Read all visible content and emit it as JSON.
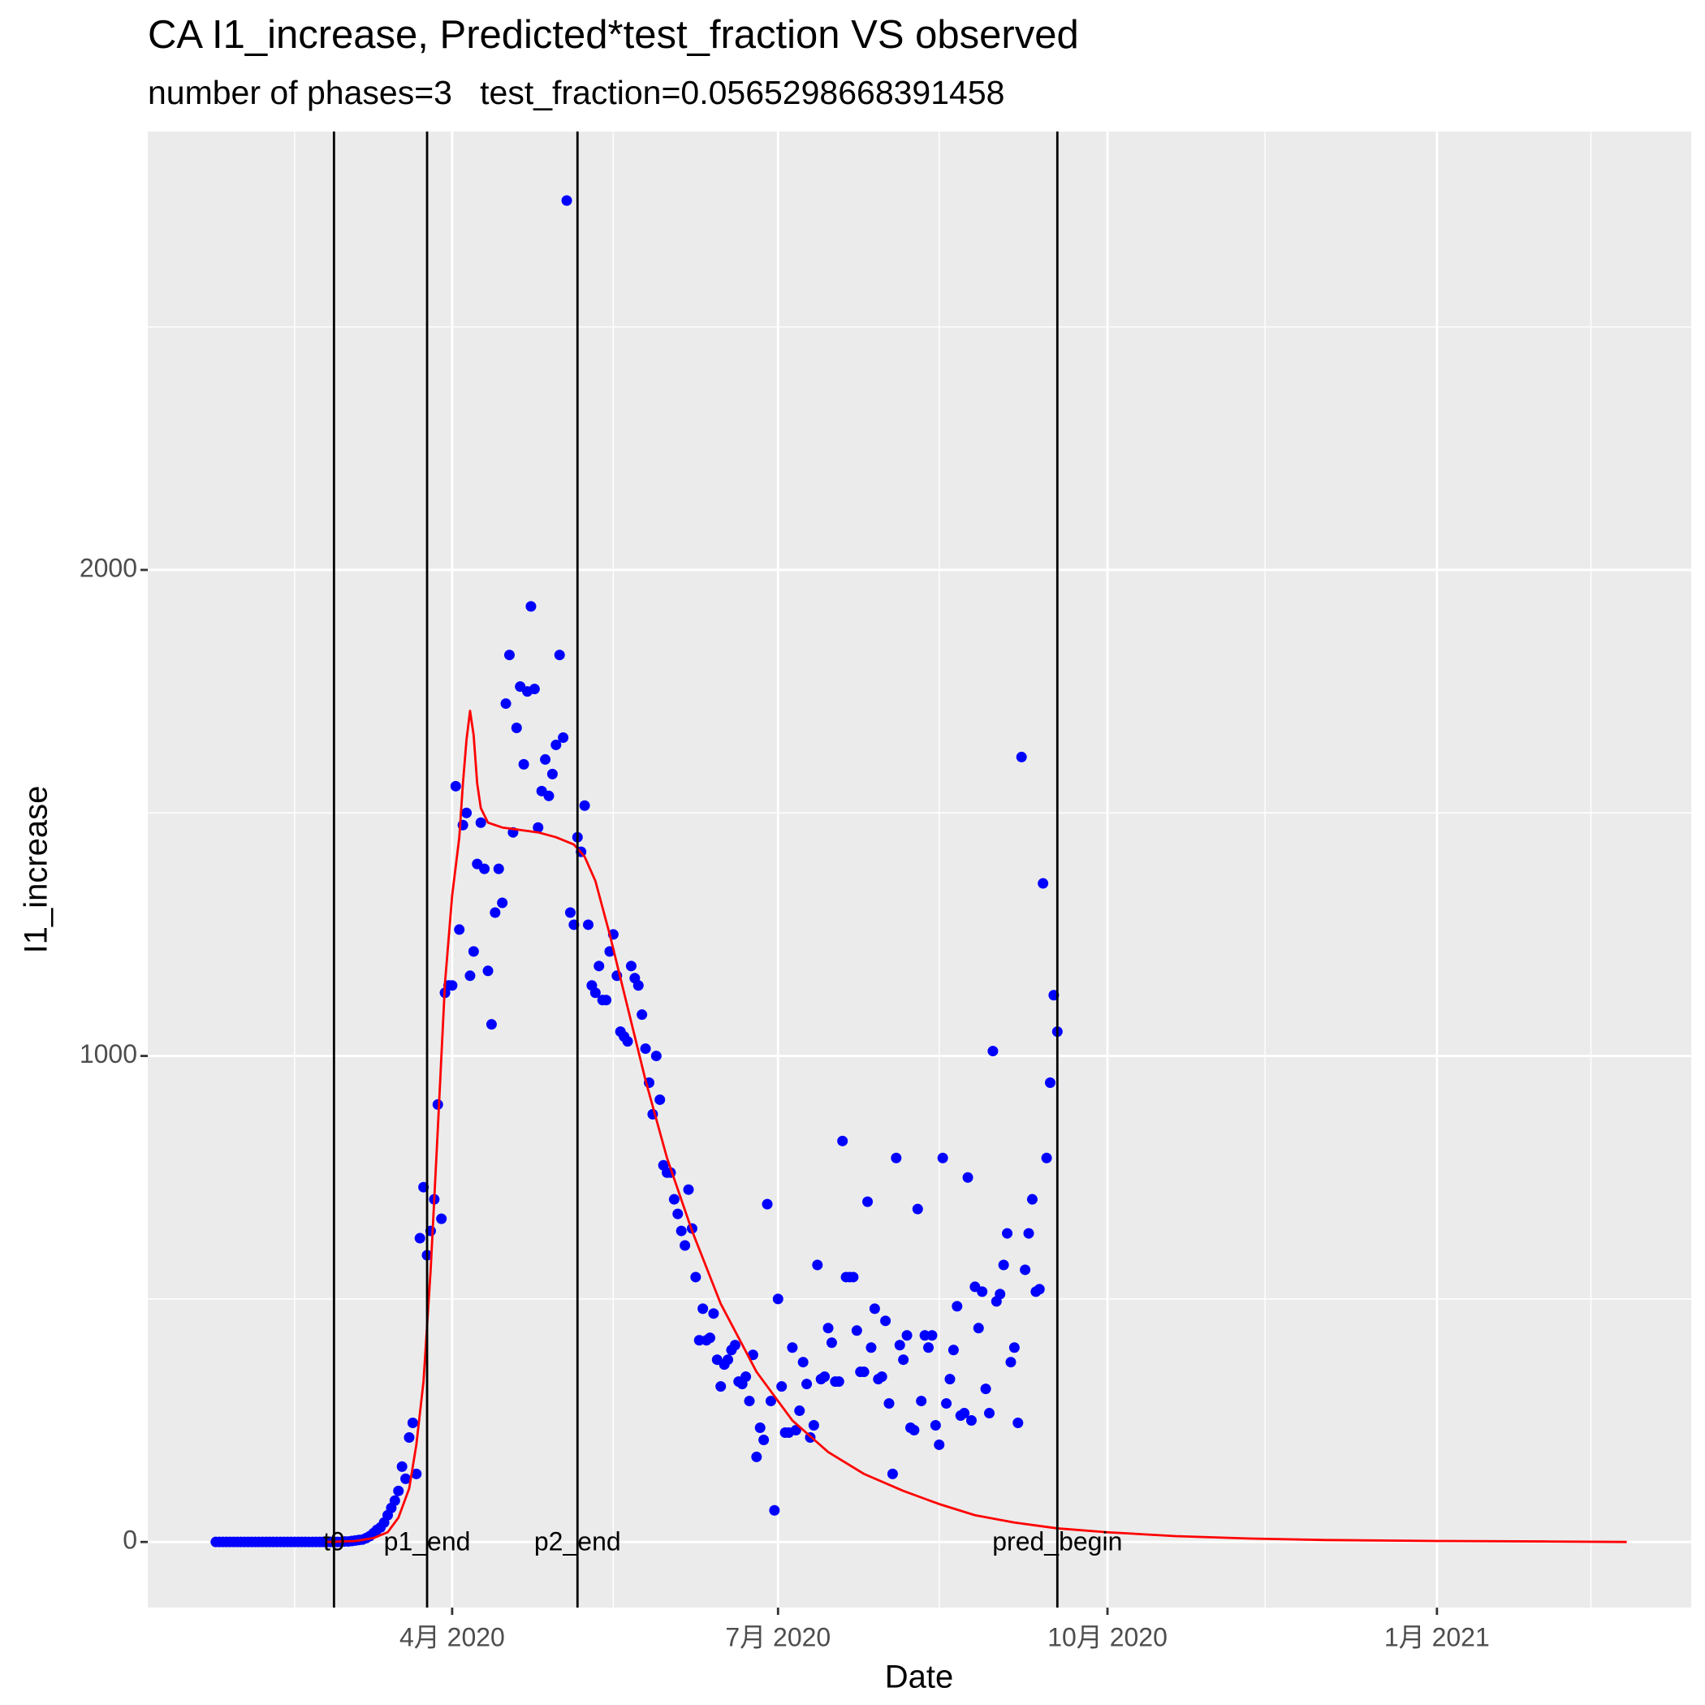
{
  "chart_data": {
    "type": "scatter",
    "title": "CA I1_increase, Predicted*test_fraction VS observed",
    "subtitle": "number of phases=3   test_fraction=0.0565298668391458",
    "xlabel": "Date",
    "ylabel": "I1_increase",
    "xlim": [
      "2020-01-07",
      "2021-03-13"
    ],
    "ylim": [
      -135,
      2902
    ],
    "xticks": [
      {
        "value": "2020-04-01",
        "label": "4月 2020"
      },
      {
        "value": "2020-07-01",
        "label": "7月 2020"
      },
      {
        "value": "2020-10-01",
        "label": "10月 2020"
      },
      {
        "value": "2021-01-01",
        "label": "1月 2021"
      }
    ],
    "yticks": [
      0,
      1000,
      2000
    ],
    "minor_xgrid": [
      "2020-02-17",
      "2020-05-16",
      "2020-08-15",
      "2020-11-14",
      "2021-02-13"
    ],
    "minor_ygrid": [
      500,
      1500,
      2500
    ],
    "grid": true,
    "panel_color": "#ebebeb",
    "vlines": [
      {
        "x": "2020-02-28",
        "label": "t0"
      },
      {
        "x": "2020-03-25",
        "label": "p1_end"
      },
      {
        "x": "2020-05-06",
        "label": "p2_end"
      },
      {
        "x": "2020-09-17",
        "label": "pred_begin"
      }
    ],
    "series": [
      {
        "type": "scatter",
        "color": "#0000ff",
        "x": [
          "2020-01-26",
          "2020-01-27",
          "2020-01-28",
          "2020-01-29",
          "2020-01-30",
          "2020-01-31",
          "2020-02-01",
          "2020-02-02",
          "2020-02-03",
          "2020-02-04",
          "2020-02-05",
          "2020-02-06",
          "2020-02-07",
          "2020-02-08",
          "2020-02-09",
          "2020-02-10",
          "2020-02-11",
          "2020-02-12",
          "2020-02-13",
          "2020-02-14",
          "2020-02-15",
          "2020-02-16",
          "2020-02-17",
          "2020-02-18",
          "2020-02-19",
          "2020-02-20",
          "2020-02-21",
          "2020-02-22",
          "2020-02-23",
          "2020-02-24",
          "2020-02-25",
          "2020-02-26",
          "2020-02-27",
          "2020-02-28",
          "2020-02-29",
          "2020-03-01",
          "2020-03-02",
          "2020-03-03",
          "2020-03-04",
          "2020-03-05",
          "2020-03-06",
          "2020-03-07",
          "2020-03-08",
          "2020-03-09",
          "2020-03-10",
          "2020-03-11",
          "2020-03-12",
          "2020-03-13",
          "2020-03-14",
          "2020-03-15",
          "2020-03-16",
          "2020-03-17",
          "2020-03-18",
          "2020-03-19",
          "2020-03-20",
          "2020-03-21",
          "2020-03-22",
          "2020-03-23",
          "2020-03-24",
          "2020-03-25",
          "2020-03-26",
          "2020-03-27",
          "2020-03-28",
          "2020-03-29",
          "2020-03-30",
          "2020-03-31",
          "2020-04-01",
          "2020-04-02",
          "2020-04-03",
          "2020-04-04",
          "2020-04-05",
          "2020-04-06",
          "2020-04-07",
          "2020-04-08",
          "2020-04-09",
          "2020-04-10",
          "2020-04-11",
          "2020-04-12",
          "2020-04-13",
          "2020-04-14",
          "2020-04-15",
          "2020-04-16",
          "2020-04-17",
          "2020-04-18",
          "2020-04-19",
          "2020-04-20",
          "2020-04-21",
          "2020-04-22",
          "2020-04-23",
          "2020-04-24",
          "2020-04-25",
          "2020-04-26",
          "2020-04-27",
          "2020-04-28",
          "2020-04-29",
          "2020-04-30",
          "2020-05-01",
          "2020-05-02",
          "2020-05-03",
          "2020-05-04",
          "2020-05-05",
          "2020-05-06",
          "2020-05-07",
          "2020-05-08",
          "2020-05-09",
          "2020-05-10",
          "2020-05-11",
          "2020-05-12",
          "2020-05-13",
          "2020-05-14",
          "2020-05-15",
          "2020-05-16",
          "2020-05-17",
          "2020-05-18",
          "2020-05-19",
          "2020-05-20",
          "2020-05-21",
          "2020-05-22",
          "2020-05-23",
          "2020-05-24",
          "2020-05-25",
          "2020-05-26",
          "2020-05-27",
          "2020-05-28",
          "2020-05-29",
          "2020-05-30",
          "2020-05-31",
          "2020-06-01",
          "2020-06-02",
          "2020-06-03",
          "2020-06-04",
          "2020-06-05",
          "2020-06-06",
          "2020-06-07",
          "2020-06-08",
          "2020-06-09",
          "2020-06-10",
          "2020-06-11",
          "2020-06-12",
          "2020-06-13",
          "2020-06-14",
          "2020-06-15",
          "2020-06-16",
          "2020-06-17",
          "2020-06-18",
          "2020-06-19",
          "2020-06-20",
          "2020-06-21",
          "2020-06-22",
          "2020-06-23",
          "2020-06-24",
          "2020-06-25",
          "2020-06-26",
          "2020-06-27",
          "2020-06-28",
          "2020-06-29",
          "2020-06-30",
          "2020-07-01",
          "2020-07-02",
          "2020-07-03",
          "2020-07-04",
          "2020-07-05",
          "2020-07-06",
          "2020-07-07",
          "2020-07-08",
          "2020-07-09",
          "2020-07-10",
          "2020-07-11",
          "2020-07-12",
          "2020-07-13",
          "2020-07-14",
          "2020-07-15",
          "2020-07-16",
          "2020-07-17",
          "2020-07-18",
          "2020-07-19",
          "2020-07-20",
          "2020-07-21",
          "2020-07-22",
          "2020-07-23",
          "2020-07-24",
          "2020-07-25",
          "2020-07-26",
          "2020-07-27",
          "2020-07-28",
          "2020-07-29",
          "2020-07-30",
          "2020-07-31",
          "2020-08-01",
          "2020-08-02",
          "2020-08-03",
          "2020-08-04",
          "2020-08-05",
          "2020-08-06",
          "2020-08-07",
          "2020-08-08",
          "2020-08-09",
          "2020-08-10",
          "2020-08-11",
          "2020-08-12",
          "2020-08-13",
          "2020-08-14",
          "2020-08-15",
          "2020-08-16",
          "2020-08-17",
          "2020-08-18",
          "2020-08-19",
          "2020-08-20",
          "2020-08-21",
          "2020-08-22",
          "2020-08-23",
          "2020-08-24",
          "2020-08-25",
          "2020-08-26",
          "2020-08-27",
          "2020-08-28",
          "2020-08-29",
          "2020-08-30",
          "2020-08-31",
          "2020-09-01",
          "2020-09-02",
          "2020-09-03",
          "2020-09-04",
          "2020-09-05",
          "2020-09-06",
          "2020-09-07",
          "2020-09-08",
          "2020-09-09",
          "2020-09-10",
          "2020-09-11",
          "2020-09-12",
          "2020-09-13",
          "2020-09-14",
          "2020-09-15",
          "2020-09-16",
          "2020-09-17"
        ],
        "values": [
          0,
          0,
          0,
          0,
          0,
          0,
          0,
          0,
          0,
          0,
          0,
          0,
          0,
          0,
          0,
          0,
          0,
          0,
          0,
          0,
          0,
          0,
          0,
          0,
          0,
          0,
          0,
          0,
          0,
          0,
          0,
          0,
          0,
          0,
          0,
          0,
          1,
          1,
          2,
          3,
          4,
          5,
          8,
          12,
          18,
          25,
          30,
          40,
          55,
          70,
          85,
          105,
          155,
          130,
          215,
          245,
          140,
          625,
          730,
          590,
          640,
          705,
          900,
          665,
          1130,
          1145,
          1145,
          1555,
          1260,
          1475,
          1500,
          1165,
          1215,
          1395,
          1480,
          1385,
          1175,
          1065,
          1295,
          1385,
          1315,
          1725,
          1825,
          1460,
          1675,
          1760,
          1600,
          1750,
          1925,
          1755,
          1470,
          1545,
          1610,
          1535,
          1580,
          1640,
          1825,
          1655,
          2760,
          1295,
          1270,
          1450,
          1420,
          1515,
          1270,
          1145,
          1130,
          1185,
          1115,
          1115,
          1215,
          1250,
          1165,
          1050,
          1040,
          1030,
          1185,
          1160,
          1145,
          1085,
          1015,
          945,
          880,
          1000,
          910,
          775,
          760,
          760,
          705,
          675,
          640,
          610,
          725,
          645,
          545,
          415,
          480,
          415,
          420,
          470,
          375,
          320,
          365,
          375,
          395,
          405,
          330,
          325,
          340,
          290,
          385,
          175,
          235,
          210,
          695,
          290,
          65,
          500,
          320,
          225,
          225,
          400,
          230,
          270,
          370,
          325,
          215,
          240,
          570,
          335,
          340,
          440,
          410,
          330,
          330,
          825,
          545,
          545,
          545,
          435,
          350,
          350,
          700,
          400,
          480,
          335,
          340,
          455,
          285,
          140,
          790,
          405,
          375,
          425,
          235,
          230,
          685,
          290,
          425,
          400,
          425,
          240,
          200,
          790,
          285,
          335,
          395,
          485,
          260,
          265,
          750,
          250,
          525,
          440,
          515,
          315,
          265,
          1010,
          495,
          510,
          570,
          635,
          370,
          400,
          245,
          1615,
          560,
          635,
          705,
          515,
          520,
          1355,
          790,
          945,
          1125,
          1050
        ]
      },
      {
        "type": "line",
        "color": "#ff0000",
        "x": [
          "2020-02-26",
          "2020-03-05",
          "2020-03-10",
          "2020-03-14",
          "2020-03-17",
          "2020-03-20",
          "2020-03-22",
          "2020-03-24",
          "2020-03-26",
          "2020-03-28",
          "2020-03-30",
          "2020-04-01",
          "2020-04-03",
          "2020-04-04",
          "2020-04-05",
          "2020-04-06",
          "2020-04-07",
          "2020-04-08",
          "2020-04-09",
          "2020-04-11",
          "2020-04-15",
          "2020-04-20",
          "2020-04-25",
          "2020-04-30",
          "2020-05-05",
          "2020-05-08",
          "2020-05-11",
          "2020-05-15",
          "2020-05-20",
          "2020-05-25",
          "2020-05-31",
          "2020-06-07",
          "2020-06-15",
          "2020-06-25",
          "2020-07-05",
          "2020-07-15",
          "2020-07-25",
          "2020-08-05",
          "2020-08-15",
          "2020-08-25",
          "2020-09-05",
          "2020-09-17",
          "2020-10-01",
          "2020-10-20",
          "2020-11-10",
          "2020-12-01",
          "2021-01-01",
          "2021-02-01",
          "2021-02-23"
        ],
        "values": [
          0,
          2,
          8,
          20,
          50,
          110,
          200,
          330,
          560,
          850,
          1150,
          1330,
          1450,
          1560,
          1650,
          1710,
          1660,
          1560,
          1510,
          1480,
          1470,
          1465,
          1460,
          1450,
          1435,
          1410,
          1360,
          1250,
          1100,
          950,
          790,
          640,
          490,
          350,
          250,
          185,
          140,
          105,
          78,
          55,
          40,
          28,
          20,
          12,
          7,
          4,
          2,
          1,
          0
        ]
      }
    ]
  }
}
